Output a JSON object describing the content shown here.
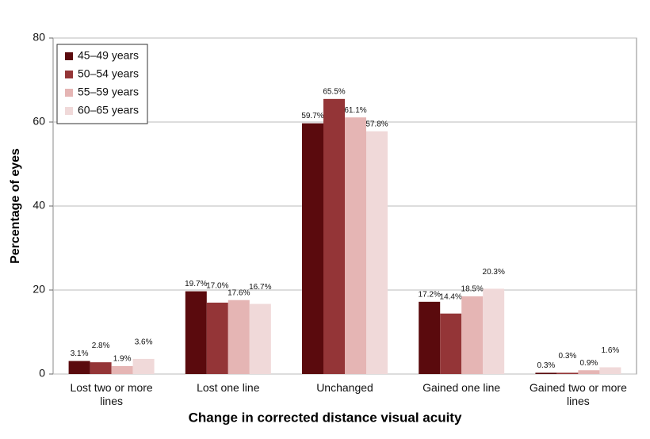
{
  "chart_data": {
    "type": "bar",
    "categories": [
      "Lost two or more lines",
      "Lost one line",
      "Unchanged",
      "Gained one line",
      "Gained two or more lines"
    ],
    "series": [
      {
        "name": "45–49 years",
        "color": "#5a0a0d",
        "values": [
          3.1,
          19.7,
          59.7,
          17.2,
          0.3
        ],
        "value_labels": [
          "3.1%",
          "19.7%",
          "59.7%",
          "17.2%",
          "0.3%"
        ]
      },
      {
        "name": "50–54 years",
        "color": "#943537",
        "values": [
          2.8,
          17.0,
          65.5,
          14.4,
          0.3
        ],
        "value_labels": [
          "2.8%",
          "17.0%",
          "65.5%",
          "14.4%",
          "0.3%"
        ]
      },
      {
        "name": "55–59 years",
        "color": "#e5b5b4",
        "values": [
          1.9,
          17.6,
          61.1,
          18.5,
          0.9
        ],
        "value_labels": [
          "1.9%",
          "17.6%",
          "61.1%",
          "18.5%",
          "0.9%"
        ]
      },
      {
        "name": "60–65 years",
        "color": "#f0d9d9",
        "values": [
          3.6,
          16.7,
          57.8,
          20.3,
          1.6
        ],
        "value_labels": [
          "3.6%",
          "16.7%",
          "57.8%",
          "20.3%",
          "1.6%"
        ]
      }
    ],
    "xlabel": "Change in corrected distance visual acuity",
    "ylabel": "Percentage of eyes",
    "ylim": [
      0,
      80
    ],
    "yticks": [
      0,
      20,
      40,
      60,
      80
    ],
    "grid": true,
    "legend": "top-left"
  }
}
